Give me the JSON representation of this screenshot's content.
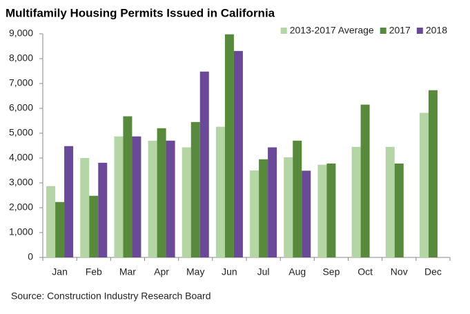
{
  "chart_data": {
    "type": "bar",
    "title": "Multifamily Housing Permits Issued in California",
    "source": "Source: Construction Industry Research Board",
    "categories": [
      "Jan",
      "Feb",
      "Mar",
      "Apr",
      "May",
      "Jun",
      "Jul",
      "Aug",
      "Sep",
      "Oct",
      "Nov",
      "Dec"
    ],
    "series": [
      {
        "name": "2013-2017 Average",
        "color": "#b4d6a4",
        "values": [
          2870,
          4000,
          4870,
          4700,
          4430,
          5260,
          3500,
          4030,
          3730,
          4450,
          4450,
          5820
        ]
      },
      {
        "name": "2017",
        "color": "#578a3a",
        "values": [
          2230,
          2480,
          5680,
          5200,
          5450,
          8980,
          3950,
          4700,
          3780,
          6150,
          3780,
          6730
        ]
      },
      {
        "name": "2018",
        "color": "#6a4a98",
        "values": [
          4480,
          3810,
          4870,
          4700,
          7480,
          8310,
          4430,
          3490,
          null,
          null,
          null,
          null
        ]
      }
    ],
    "ylim": [
      0,
      9000
    ],
    "yticks": [
      0,
      {
        "value": 1000,
        "label": "1,000"
      },
      {
        "value": 2000,
        "label": "2,000"
      },
      {
        "value": 3000,
        "label": "3,000"
      },
      {
        "value": 4000,
        "label": "4,000"
      },
      {
        "value": 5000,
        "label": "5,000"
      },
      {
        "value": 6000,
        "label": "6,000"
      },
      {
        "value": 7000,
        "label": "7,000"
      },
      {
        "value": 8000,
        "label": "8,000"
      },
      {
        "value": 9000,
        "label": "9,000"
      }
    ],
    "grid": false,
    "legend": "top-right"
  }
}
